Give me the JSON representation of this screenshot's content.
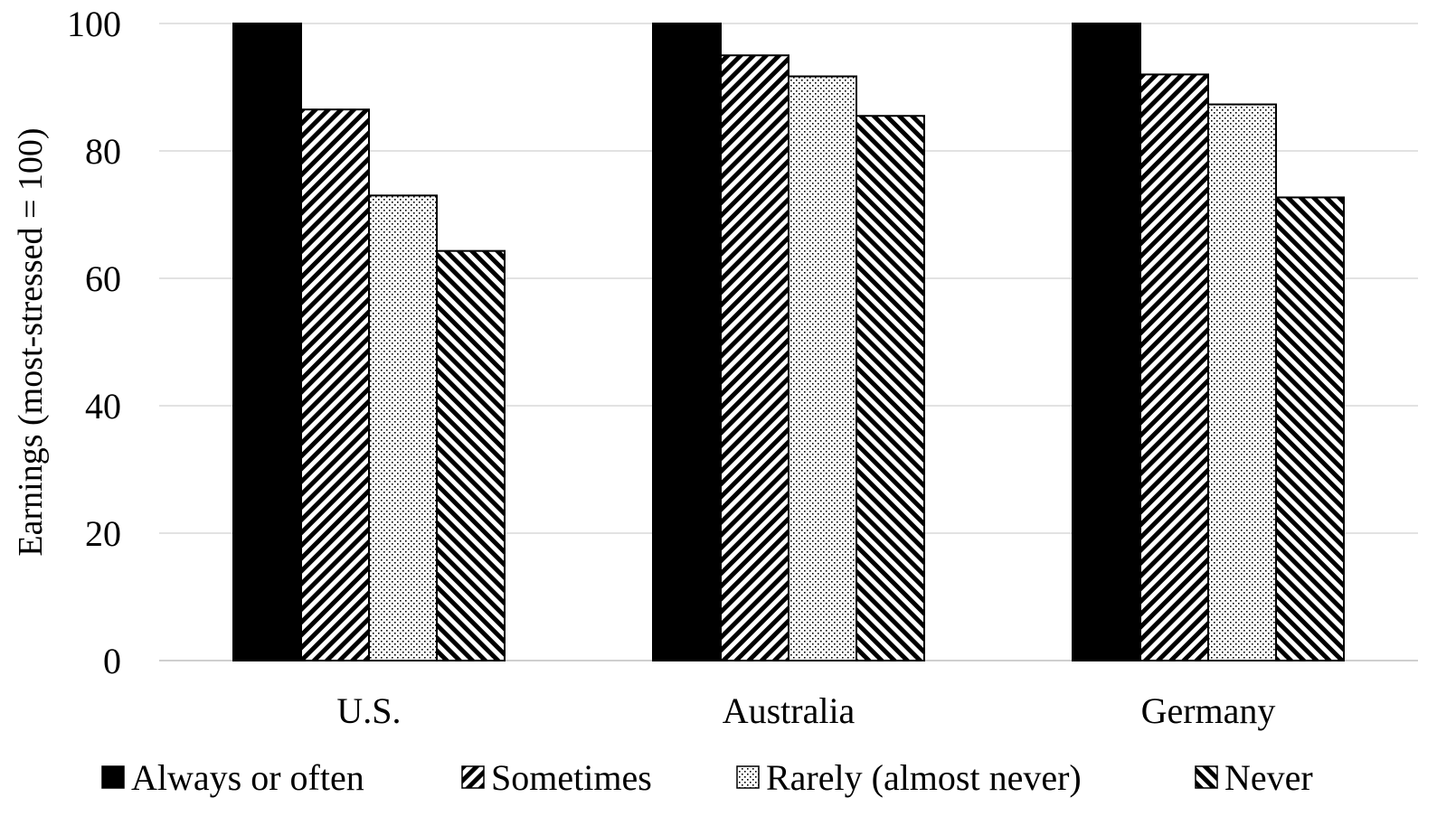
{
  "chart_data": {
    "type": "bar",
    "title": "",
    "xlabel": "",
    "ylabel": "Earnings  (most-stressed = 100)",
    "ylim": [
      0,
      100
    ],
    "yticks": [
      0,
      20,
      40,
      60,
      80,
      100
    ],
    "grid": true,
    "legend_position": "bottom",
    "categories": [
      "U.S.",
      "Australia",
      "Germany"
    ],
    "series": [
      {
        "name": "Always or often",
        "pattern": "solid-black",
        "values": [
          100,
          100,
          100
        ]
      },
      {
        "name": "Sometimes",
        "pattern": "diagonal-up",
        "values": [
          86.5,
          95,
          92
        ]
      },
      {
        "name": "Rarely (almost never)",
        "pattern": "dots",
        "values": [
          73,
          91.7,
          87.3
        ]
      },
      {
        "name": "Never",
        "pattern": "diagonal-down",
        "values": [
          64.3,
          85.5,
          72.7
        ]
      }
    ],
    "colors": {
      "bar_fill": "#000000",
      "bar_background": "#ffffff",
      "gridline": "#d9d9d9"
    }
  }
}
